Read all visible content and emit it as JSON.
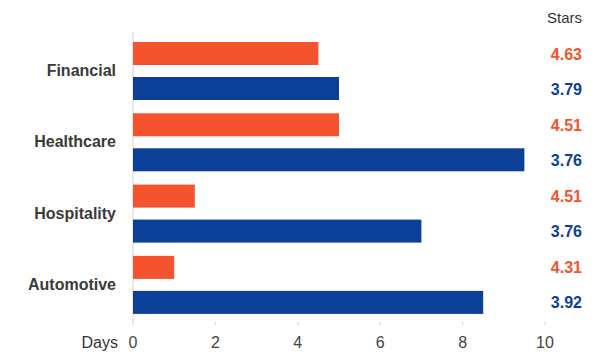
{
  "chart_data": {
    "type": "bar",
    "orientation": "horizontal",
    "categories": [
      "Financial",
      "Healthcare",
      "Hospitality",
      "Automotive"
    ],
    "series": [
      {
        "color": "#f4532d",
        "values": [
          4.5,
          5.0,
          1.5,
          1.0
        ],
        "stars": [
          4.63,
          4.51,
          4.51,
          4.31
        ]
      },
      {
        "color": "#0b3f98",
        "values": [
          5.0,
          9.5,
          7.0,
          8.5
        ],
        "stars": [
          3.79,
          3.76,
          3.76,
          3.92
        ]
      }
    ],
    "xlabel": "Days",
    "stars_label": "Stars",
    "xlim": [
      0,
      10
    ],
    "xticks": [
      0,
      2,
      4,
      6,
      8,
      10
    ],
    "grid": false
  }
}
